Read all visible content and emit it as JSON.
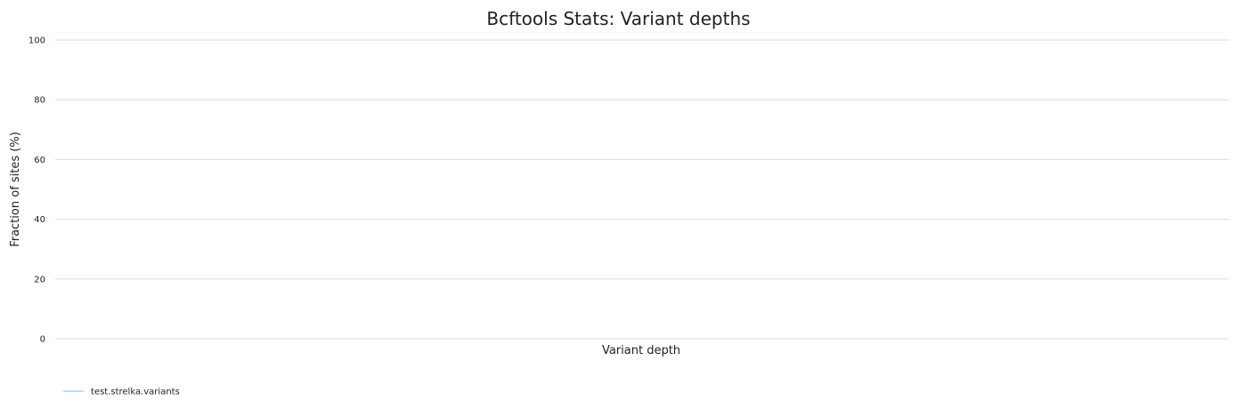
{
  "chart_data": {
    "type": "line",
    "title": "Bcftools Stats: Variant depths",
    "xlabel": "Variant depth",
    "ylabel": "Fraction of sites (%)",
    "ylim": [
      0,
      100
    ],
    "yticks": [
      0,
      20,
      40,
      60,
      80,
      100
    ],
    "grid": "horizontal",
    "legend_position": "bottom-left",
    "series": [
      {
        "name": "test.strelka.variants",
        "color": "#7cb5ec",
        "x": [],
        "y": []
      }
    ]
  }
}
